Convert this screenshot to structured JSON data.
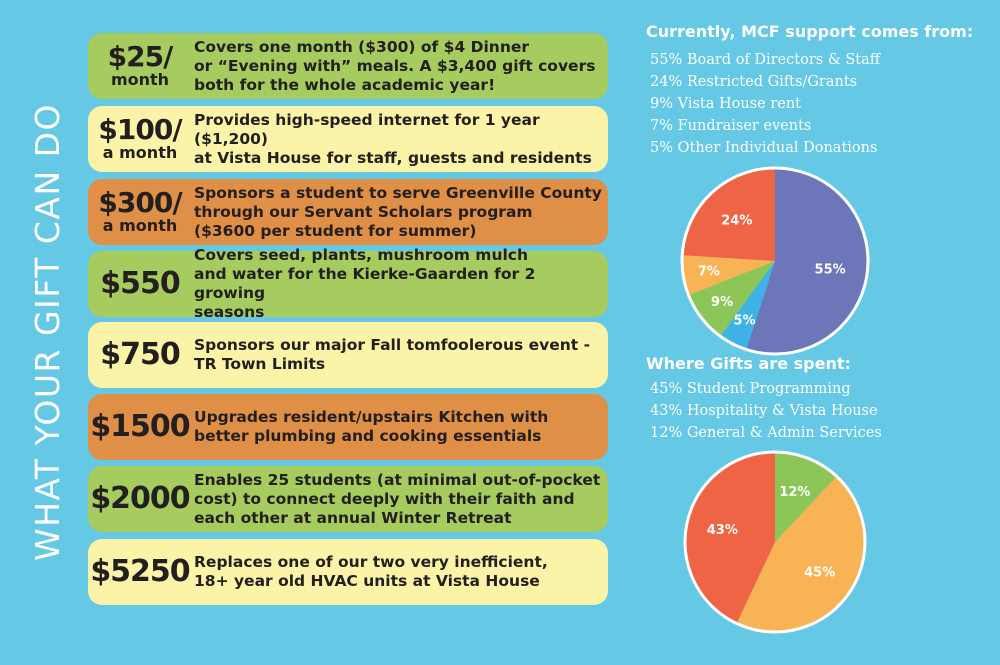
{
  "side_title": "WHAT YOUR GIFT CAN DO",
  "tiers": [
    {
      "amount": "$25/",
      "period": "month",
      "lines": [
        "Covers one month ($300) of $4 Dinner",
        "or “Evening with” meals.  A $3,400 gift covers",
        "both for the whole academic year!"
      ]
    },
    {
      "amount": "$100/",
      "period": "a month",
      "lines": [
        "Provides high-speed internet for 1 year ($1,200)",
        "at Vista House for staff, guests and residents"
      ]
    },
    {
      "amount": "$300/",
      "period": "a month",
      "lines": [
        "Sponsors a student to serve Greenville County",
        "through our Servant Scholars program",
        "($3600 per student for summer)"
      ]
    },
    {
      "amount": "$550",
      "period": "",
      "lines": [
        "Covers seed, plants, mushroom mulch",
        "and water for the Kierke-Gaarden for 2 growing",
        "seasons"
      ]
    },
    {
      "amount": "$750",
      "period": "",
      "lines": [
        "Sponsors our major Fall tomfoolerous event -",
        "TR Town Limits"
      ]
    },
    {
      "amount": "$1500",
      "period": "",
      "lines": [
        "Upgrades resident/upstairs Kitchen with",
        "better plumbing and cooking essentials"
      ]
    },
    {
      "amount": "$2000",
      "period": "",
      "lines": [
        "Enables 25 students (at minimal out-of-pocket",
        "cost) to connect deeply with their faith and",
        "each other at annual Winter Retreat"
      ]
    },
    {
      "amount": "$5250",
      "period": "",
      "lines": [
        "Replaces one of our two very inefficient,",
        "18+ year old HVAC units at Vista House"
      ]
    }
  ],
  "support": {
    "heading": "Currently, MCF support comes from:",
    "items": [
      "55% Board of Directors & Staff",
      "24% Restricted Gifts/Grants",
      "9%   Vista House rent",
      "7%   Fundraiser events",
      "5%   Other Individual Donations"
    ]
  },
  "spent": {
    "heading": "Where Gifts are spent:",
    "items": [
      "45% Student Programming",
      "43% Hospitality & Vista House",
      "12% General & Admin Services"
    ]
  },
  "chart_data": [
    {
      "type": "pie",
      "title": "Currently, MCF support comes from:",
      "slices": [
        {
          "label": "Board of Directors & Staff",
          "value": 55,
          "text": "55%",
          "color": "#6c76b8"
        },
        {
          "label": "Other Individual Donations",
          "value": 5,
          "text": "5%",
          "color": "#3fb2e6"
        },
        {
          "label": "Vista House rent",
          "value": 9,
          "text": "9%",
          "color": "#8dc658"
        },
        {
          "label": "Fundraiser events",
          "value": 7,
          "text": "7%",
          "color": "#f8b454"
        },
        {
          "label": "Restricted Gifts/Grants",
          "value": 24,
          "text": "24%",
          "color": "#ef6444"
        }
      ]
    },
    {
      "type": "pie",
      "title": "Where Gifts are spent:",
      "slices": [
        {
          "label": "General & Admin Services",
          "value": 12,
          "text": "12%",
          "color": "#8dc658"
        },
        {
          "label": "Student Programming",
          "value": 45,
          "text": "45%",
          "color": "#f8b454"
        },
        {
          "label": "Hospitality & Vista House",
          "value": 43,
          "text": "43%",
          "color": "#ef6444"
        }
      ]
    }
  ]
}
